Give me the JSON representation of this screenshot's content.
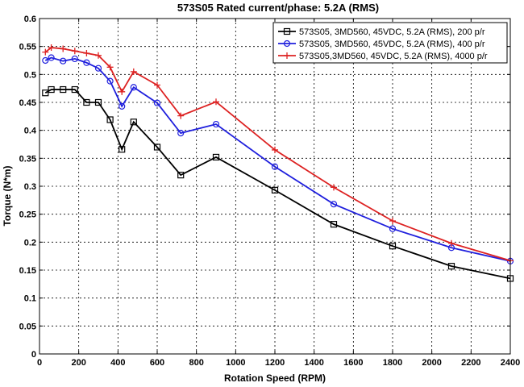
{
  "chart_data": {
    "type": "line",
    "title": "573S05 Rated current/phase: 5.2A (RMS)",
    "xlabel": "Rotation Speed (RPM)",
    "ylabel": "Torque (N*m)",
    "xlim": [
      0,
      2400
    ],
    "ylim": [
      0,
      0.6
    ],
    "xticks": [
      0,
      200,
      400,
      600,
      800,
      1000,
      1200,
      1400,
      1600,
      1800,
      2000,
      2200,
      2400
    ],
    "yticks": [
      0,
      0.05,
      0.1,
      0.15,
      0.2,
      0.25,
      0.3,
      0.35,
      0.4,
      0.45,
      0.5,
      0.55,
      0.6
    ],
    "xtick_labels": [
      "0",
      "200",
      "400",
      "600",
      "800",
      "1000",
      "1200",
      "1400",
      "1600",
      "1800",
      "2000",
      "2200",
      "2400"
    ],
    "ytick_labels": [
      "0",
      "0.05",
      "0.1",
      "0.15",
      "0.2",
      "0.25",
      "0.3",
      "0.35",
      "0.4",
      "0.45",
      "0.5",
      "0.55",
      "0.6"
    ],
    "grid": true,
    "legend_position": "top-right",
    "series": [
      {
        "name": "573S05, 3MD560, 45VDC, 5.2A (RMS), 200 p/r",
        "color": "#000000",
        "marker": "square",
        "x": [
          30,
          60,
          120,
          180,
          240,
          300,
          360,
          420,
          480,
          600,
          720,
          900,
          1200,
          1500,
          1800,
          2100,
          2400
        ],
        "y": [
          0.467,
          0.473,
          0.473,
          0.473,
          0.45,
          0.45,
          0.419,
          0.366,
          0.415,
          0.37,
          0.32,
          0.352,
          0.293,
          0.232,
          0.193,
          0.157,
          0.135
        ]
      },
      {
        "name": "573S05, 3MD560, 45VDC, 5.2A (RMS), 400 p/r",
        "color": "#1f1fdd",
        "marker": "circle",
        "x": [
          30,
          60,
          120,
          180,
          240,
          300,
          360,
          420,
          480,
          600,
          720,
          900,
          1200,
          1500,
          1800,
          2100,
          2400
        ],
        "y": [
          0.525,
          0.53,
          0.524,
          0.528,
          0.521,
          0.511,
          0.488,
          0.443,
          0.477,
          0.449,
          0.395,
          0.411,
          0.335,
          0.268,
          0.224,
          0.19,
          0.166
        ]
      },
      {
        "name": "573S05,3MD560, 45VDC, 5.2A (RMS), 4000 p/r",
        "color": "#dd2222",
        "marker": "plus",
        "x": [
          30,
          60,
          120,
          180,
          240,
          300,
          360,
          420,
          480,
          600,
          720,
          900,
          1200,
          1500,
          1800,
          2100,
          2400
        ],
        "y": [
          0.54,
          0.548,
          0.546,
          0.542,
          0.538,
          0.534,
          0.513,
          0.469,
          0.505,
          0.481,
          0.426,
          0.451,
          0.365,
          0.298,
          0.238,
          0.198,
          0.167
        ]
      }
    ]
  }
}
